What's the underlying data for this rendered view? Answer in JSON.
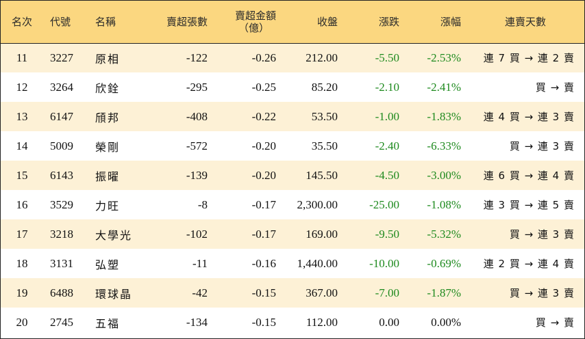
{
  "headers": {
    "rank": "名次",
    "code": "代號",
    "name": "名稱",
    "net_sell_lots": "賣超張數",
    "net_sell_amount": "賣超金額",
    "net_sell_amount_unit": "（億）",
    "close": "收盤",
    "change": "漲跌",
    "change_pct": "漲幅",
    "streak": "連賣天數"
  },
  "colors": {
    "header_bg": "#fbd780",
    "odd_row_bg": "#fdf1d6",
    "negative": "#1e8a1e",
    "neutral": "#111111"
  },
  "rows": [
    {
      "rank": "11",
      "code": "3227",
      "name": "原相",
      "net_sell_lots": "-122",
      "net_sell_amount": "-0.26",
      "close": "212.00",
      "change": "-5.50",
      "change_pct": "-2.53%",
      "streak": "連 7 買 → 連 2 賣"
    },
    {
      "rank": "12",
      "code": "3264",
      "name": "欣銓",
      "net_sell_lots": "-295",
      "net_sell_amount": "-0.25",
      "close": "85.20",
      "change": "-2.10",
      "change_pct": "-2.41%",
      "streak": "買 → 賣"
    },
    {
      "rank": "13",
      "code": "6147",
      "name": "頎邦",
      "net_sell_lots": "-408",
      "net_sell_amount": "-0.22",
      "close": "53.50",
      "change": "-1.00",
      "change_pct": "-1.83%",
      "streak": "連 4 買 → 連 3 賣"
    },
    {
      "rank": "14",
      "code": "5009",
      "name": "榮剛",
      "net_sell_lots": "-572",
      "net_sell_amount": "-0.20",
      "close": "35.50",
      "change": "-2.40",
      "change_pct": "-6.33%",
      "streak": "買 → 連 3 賣"
    },
    {
      "rank": "15",
      "code": "6143",
      "name": "振曜",
      "net_sell_lots": "-139",
      "net_sell_amount": "-0.20",
      "close": "145.50",
      "change": "-4.50",
      "change_pct": "-3.00%",
      "streak": "連 6 買 → 連 4 賣"
    },
    {
      "rank": "16",
      "code": "3529",
      "name": "力旺",
      "net_sell_lots": "-8",
      "net_sell_amount": "-0.17",
      "close": "2,300.00",
      "change": "-25.00",
      "change_pct": "-1.08%",
      "streak": "連 3 買 → 連 5 賣"
    },
    {
      "rank": "17",
      "code": "3218",
      "name": "大學光",
      "net_sell_lots": "-102",
      "net_sell_amount": "-0.17",
      "close": "169.00",
      "change": "-9.50",
      "change_pct": "-5.32%",
      "streak": "買 → 連 3 賣"
    },
    {
      "rank": "18",
      "code": "3131",
      "name": "弘塑",
      "net_sell_lots": "-11",
      "net_sell_amount": "-0.16",
      "close": "1,440.00",
      "change": "-10.00",
      "change_pct": "-0.69%",
      "streak": "連 2 買 → 連 4 賣"
    },
    {
      "rank": "19",
      "code": "6488",
      "name": "環球晶",
      "net_sell_lots": "-42",
      "net_sell_amount": "-0.15",
      "close": "367.00",
      "change": "-7.00",
      "change_pct": "-1.87%",
      "streak": "買 → 連 3 賣"
    },
    {
      "rank": "20",
      "code": "2745",
      "name": "五福",
      "net_sell_lots": "-134",
      "net_sell_amount": "-0.15",
      "close": "112.00",
      "change": "0.00",
      "change_pct": "0.00%",
      "streak": "買 → 賣"
    }
  ]
}
